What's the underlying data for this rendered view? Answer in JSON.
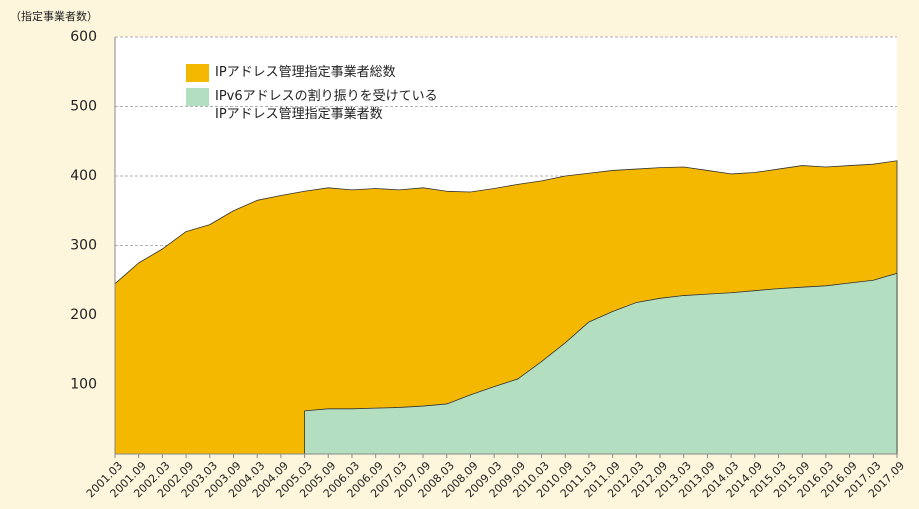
{
  "chart_data": {
    "type": "area",
    "y_label": "（指定事業者数）",
    "categories": [
      "2001.03",
      "2001.09",
      "2002.03",
      "2002.09",
      "2003.03",
      "2003.09",
      "2004.03",
      "2004.09",
      "2005.03",
      "2005.09",
      "2006.03",
      "2006.09",
      "2007.03",
      "2007.09",
      "2008.03",
      "2008.09",
      "2009.03",
      "2009.09",
      "2010.03",
      "2010.09",
      "2011.03",
      "2011.09",
      "2012.03",
      "2012.09",
      "2013.03",
      "2013.09",
      "2014.03",
      "2014.09",
      "2015.03",
      "2015.09",
      "2016.03",
      "2016.09",
      "2017.03",
      "2017.09"
    ],
    "series": [
      {
        "name": "IPアドレス管理指定事業者総数",
        "color": "#f5b800",
        "values": [
          245,
          275,
          295,
          320,
          330,
          350,
          365,
          372,
          378,
          383,
          380,
          382,
          380,
          383,
          378,
          377,
          382,
          388,
          393,
          400,
          404,
          408,
          410,
          412,
          413,
          408,
          403,
          405,
          410,
          415,
          413,
          415,
          417,
          422
        ]
      },
      {
        "name": "IPv6アドレスの割り振りを受けている\nIPアドレス管理指定事業者数",
        "color": "#b3dfc0",
        "values": [
          null,
          null,
          null,
          null,
          null,
          null,
          null,
          null,
          62,
          65,
          65,
          66,
          67,
          69,
          72,
          85,
          97,
          108,
          133,
          160,
          190,
          205,
          218,
          224,
          228,
          230,
          232,
          235,
          238,
          240,
          242,
          246,
          250,
          260
        ]
      }
    ],
    "ylim": [
      0,
      600
    ],
    "yticks": [
      100,
      200,
      300,
      400,
      500,
      600
    ],
    "grid": true
  }
}
